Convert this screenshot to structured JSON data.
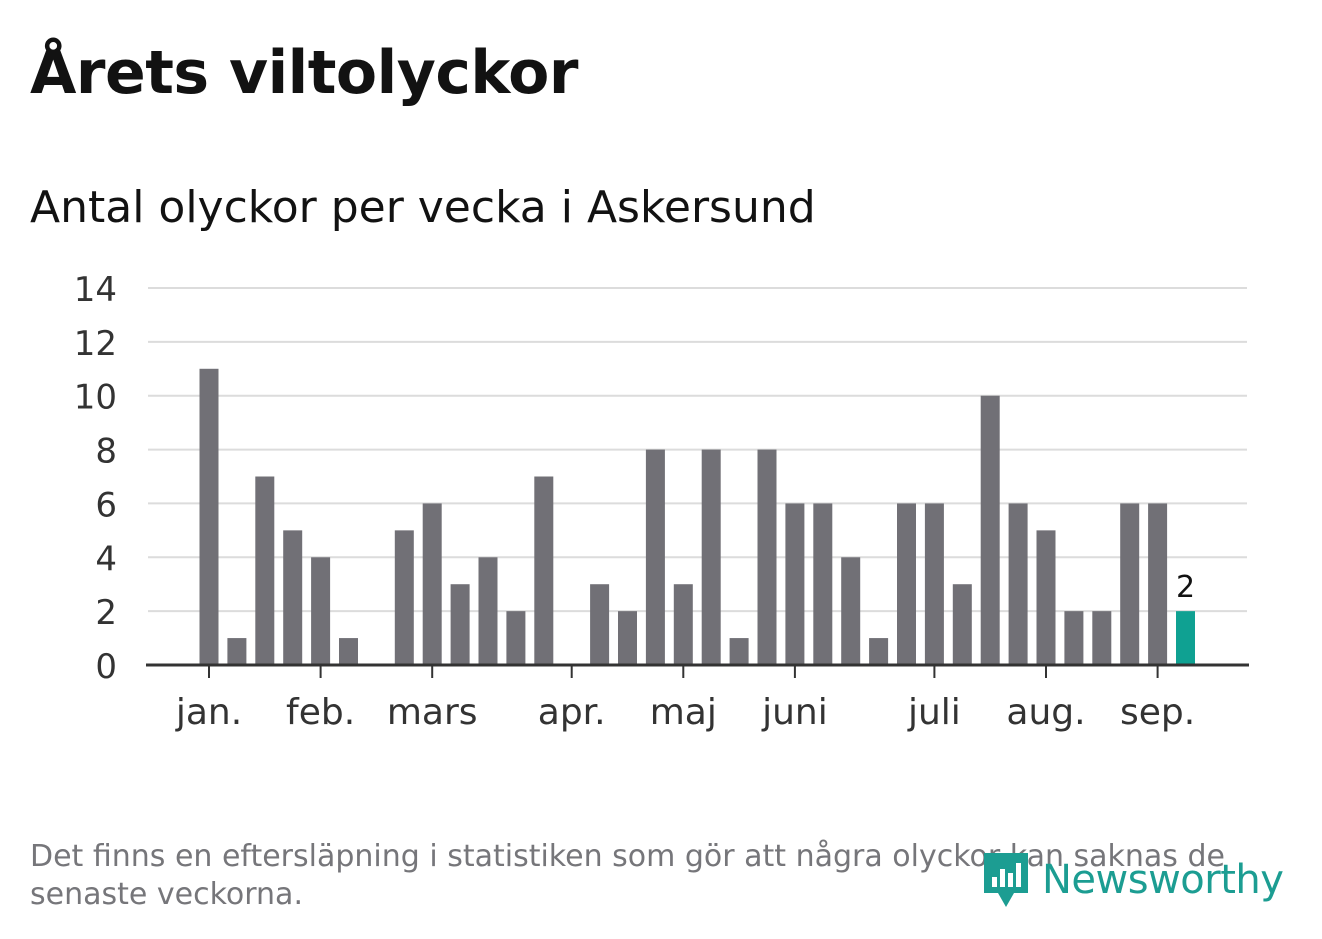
{
  "header": {
    "title": "Årets viltolyckor",
    "subtitle": "Antal olyckor per vecka i Askersund"
  },
  "footer": {
    "note": "Det finns en eftersläpning i statistiken som gör att några olyckor kan saknas de senaste veckorna.",
    "brand": "Newsworthy"
  },
  "colors": {
    "bar": "#717076",
    "highlight": "#0fa192",
    "grid": "#dcdcdc",
    "axis": "#333333",
    "brand": "#1c9d92"
  },
  "chart_data": {
    "type": "bar",
    "ylim": [
      0,
      14
    ],
    "yticks": [
      0,
      2,
      4,
      6,
      8,
      10,
      12,
      14
    ],
    "grid": true,
    "month_labels": [
      {
        "label": "jan.",
        "week": 1
      },
      {
        "label": "feb.",
        "week": 5
      },
      {
        "label": "mars",
        "week": 9
      },
      {
        "label": "apr.",
        "week": 14
      },
      {
        "label": "maj",
        "week": 18
      },
      {
        "label": "juni",
        "week": 22
      },
      {
        "label": "juli",
        "week": 27
      },
      {
        "label": "aug.",
        "week": 31
      },
      {
        "label": "sep.",
        "week": 35
      }
    ],
    "weeks": [
      1,
      2,
      3,
      4,
      5,
      6,
      7,
      8,
      9,
      10,
      11,
      12,
      13,
      14,
      15,
      16,
      17,
      18,
      19,
      20,
      21,
      22,
      23,
      24,
      25,
      26,
      27,
      28,
      29,
      30,
      31,
      32,
      33,
      34,
      35,
      36
    ],
    "values": [
      11,
      1,
      7,
      5,
      4,
      1,
      0,
      5,
      6,
      3,
      4,
      2,
      7,
      0,
      3,
      2,
      8,
      3,
      8,
      1,
      8,
      6,
      6,
      4,
      1,
      6,
      6,
      3,
      10,
      6,
      5,
      2,
      2,
      6,
      6,
      2
    ],
    "highlight_index": 35,
    "highlight_label": "2"
  }
}
